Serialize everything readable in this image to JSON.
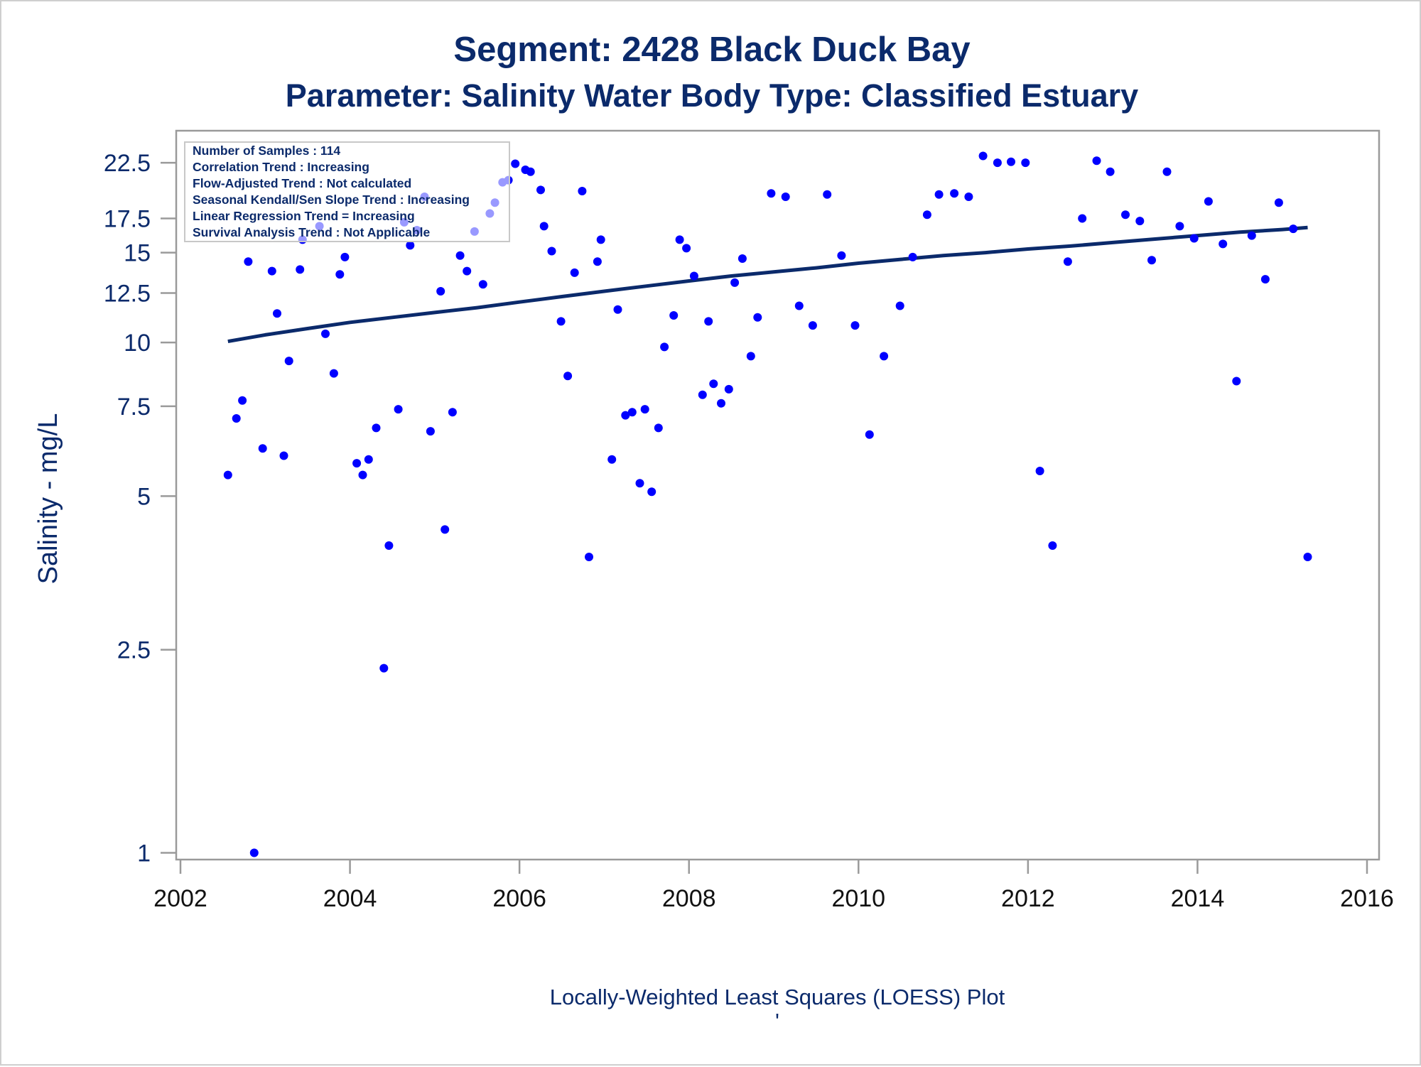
{
  "chart_data": {
    "type": "scatter",
    "title": "Segment: 2428  Black Duck Bay",
    "subtitle": "Parameter: Salinity   Water Body Type: Classified Estuary",
    "xlabel": "",
    "ylabel": "Salinity - mg/L",
    "footer": "Locally-Weighted Least Squares (LOESS) Plot",
    "footer_mark": "'",
    "y_scale": "log",
    "xlim": [
      2002,
      2016
    ],
    "ylim": [
      0.97,
      26
    ],
    "x_ticks": [
      "2002",
      "2004",
      "2006",
      "2008",
      "2010",
      "2012",
      "2014",
      "2016"
    ],
    "y_ticks": [
      "1",
      "2.5",
      "5",
      "7.5",
      "10",
      "12.5",
      "15",
      "17.5",
      "22.5"
    ],
    "grid": false,
    "legend_position": "top-left",
    "info_box": [
      "Number of Samples : 114",
      "Correlation Trend : Increasing",
      "Flow-Adjusted Trend : Not calculated",
      "Seasonal Kendall/Sen Slope Trend : Increasing",
      "Linear Regression Trend = Increasing",
      "Survival Analysis Trend : Not Applicable"
    ],
    "colors": {
      "points": "#0000ff",
      "trend_line": "#0b2a6b",
      "text": "#0b2a6b",
      "frame": "#9a9a9a"
    },
    "series": [
      {
        "kind": "points",
        "points": [
          [
            2002.56,
            5.5
          ],
          [
            2002.66,
            7.1
          ],
          [
            2002.73,
            7.7
          ],
          [
            2002.8,
            14.4
          ],
          [
            2002.87,
            1.0
          ],
          [
            2002.97,
            6.2
          ],
          [
            2003.08,
            13.8
          ],
          [
            2003.14,
            11.4
          ],
          [
            2003.22,
            6.0
          ],
          [
            2003.28,
            9.2
          ],
          [
            2003.41,
            13.9
          ],
          [
            2003.44,
            15.9
          ],
          [
            2003.64,
            16.9
          ],
          [
            2003.71,
            10.4
          ],
          [
            2003.81,
            8.7
          ],
          [
            2003.88,
            13.6
          ],
          [
            2003.94,
            14.7
          ],
          [
            2004.08,
            5.8
          ],
          [
            2004.15,
            5.5
          ],
          [
            2004.22,
            5.9
          ],
          [
            2004.31,
            6.8
          ],
          [
            2004.4,
            2.3
          ],
          [
            2004.46,
            4.0
          ],
          [
            2004.57,
            7.4
          ],
          [
            2004.64,
            17.2
          ],
          [
            2004.71,
            15.5
          ],
          [
            2004.79,
            16.6
          ],
          [
            2004.88,
            19.3
          ],
          [
            2004.95,
            6.7
          ],
          [
            2005.07,
            12.6
          ],
          [
            2005.12,
            4.3
          ],
          [
            2005.21,
            7.3
          ],
          [
            2005.3,
            14.8
          ],
          [
            2005.38,
            13.8
          ],
          [
            2005.47,
            16.5
          ],
          [
            2005.57,
            13.0
          ],
          [
            2005.65,
            17.9
          ],
          [
            2005.71,
            18.8
          ],
          [
            2005.8,
            20.6
          ],
          [
            2005.87,
            20.8
          ],
          [
            2005.95,
            22.4
          ],
          [
            2006.07,
            21.8
          ],
          [
            2006.13,
            21.6
          ],
          [
            2006.25,
            19.9
          ],
          [
            2006.29,
            16.9
          ],
          [
            2006.38,
            15.1
          ],
          [
            2006.49,
            11.0
          ],
          [
            2006.57,
            8.6
          ],
          [
            2006.65,
            13.7
          ],
          [
            2006.74,
            19.8
          ],
          [
            2006.82,
            3.8
          ],
          [
            2006.92,
            14.4
          ],
          [
            2006.96,
            15.9
          ],
          [
            2007.09,
            5.9
          ],
          [
            2007.16,
            11.6
          ],
          [
            2007.25,
            7.2
          ],
          [
            2007.33,
            7.3
          ],
          [
            2007.42,
            5.3
          ],
          [
            2007.48,
            7.4
          ],
          [
            2007.56,
            5.1
          ],
          [
            2007.64,
            6.8
          ],
          [
            2007.71,
            9.8
          ],
          [
            2007.82,
            11.3
          ],
          [
            2007.89,
            15.9
          ],
          [
            2007.97,
            15.3
          ],
          [
            2008.06,
            13.5
          ],
          [
            2008.16,
            7.9
          ],
          [
            2008.23,
            11.0
          ],
          [
            2008.29,
            8.3
          ],
          [
            2008.38,
            7.6
          ],
          [
            2008.47,
            8.1
          ],
          [
            2008.54,
            13.1
          ],
          [
            2008.63,
            14.6
          ],
          [
            2008.73,
            9.4
          ],
          [
            2008.81,
            11.2
          ],
          [
            2008.97,
            19.6
          ],
          [
            2009.14,
            19.3
          ],
          [
            2009.3,
            11.8
          ],
          [
            2009.46,
            10.8
          ],
          [
            2009.63,
            19.5
          ],
          [
            2009.8,
            14.8
          ],
          [
            2009.96,
            10.8
          ],
          [
            2010.13,
            6.6
          ],
          [
            2010.3,
            9.4
          ],
          [
            2010.49,
            11.8
          ],
          [
            2010.64,
            14.7
          ],
          [
            2010.81,
            17.8
          ],
          [
            2010.95,
            19.5
          ],
          [
            2011.13,
            19.6
          ],
          [
            2011.3,
            19.3
          ],
          [
            2011.47,
            23.2
          ],
          [
            2011.64,
            22.5
          ],
          [
            2011.8,
            22.6
          ],
          [
            2011.97,
            22.5
          ],
          [
            2012.14,
            5.6
          ],
          [
            2012.29,
            4.0
          ],
          [
            2012.47,
            14.4
          ],
          [
            2012.64,
            17.5
          ],
          [
            2012.81,
            22.7
          ],
          [
            2012.97,
            21.6
          ],
          [
            2013.15,
            17.8
          ],
          [
            2013.32,
            17.3
          ],
          [
            2013.46,
            14.5
          ],
          [
            2013.64,
            21.6
          ],
          [
            2013.79,
            16.9
          ],
          [
            2013.96,
            16.0
          ],
          [
            2014.13,
            18.9
          ],
          [
            2014.3,
            15.6
          ],
          [
            2014.46,
            8.4
          ],
          [
            2014.64,
            16.2
          ],
          [
            2014.8,
            13.3
          ],
          [
            2014.96,
            18.8
          ],
          [
            2015.13,
            16.7
          ],
          [
            2015.3,
            3.8
          ]
        ]
      },
      {
        "kind": "line",
        "points": [
          [
            2002.56,
            10.05
          ],
          [
            2003.0,
            10.35
          ],
          [
            2003.5,
            10.65
          ],
          [
            2004.0,
            10.95
          ],
          [
            2004.5,
            11.2
          ],
          [
            2005.0,
            11.45
          ],
          [
            2005.5,
            11.7
          ],
          [
            2006.0,
            12.0
          ],
          [
            2006.5,
            12.3
          ],
          [
            2007.0,
            12.6
          ],
          [
            2007.5,
            12.9
          ],
          [
            2008.0,
            13.2
          ],
          [
            2008.5,
            13.5
          ],
          [
            2009.0,
            13.75
          ],
          [
            2009.5,
            14.0
          ],
          [
            2010.0,
            14.3
          ],
          [
            2010.5,
            14.55
          ],
          [
            2011.0,
            14.8
          ],
          [
            2011.5,
            15.0
          ],
          [
            2012.0,
            15.25
          ],
          [
            2012.5,
            15.45
          ],
          [
            2013.0,
            15.7
          ],
          [
            2013.5,
            15.95
          ],
          [
            2014.0,
            16.2
          ],
          [
            2014.5,
            16.45
          ],
          [
            2015.0,
            16.65
          ],
          [
            2015.3,
            16.8
          ]
        ]
      }
    ]
  }
}
